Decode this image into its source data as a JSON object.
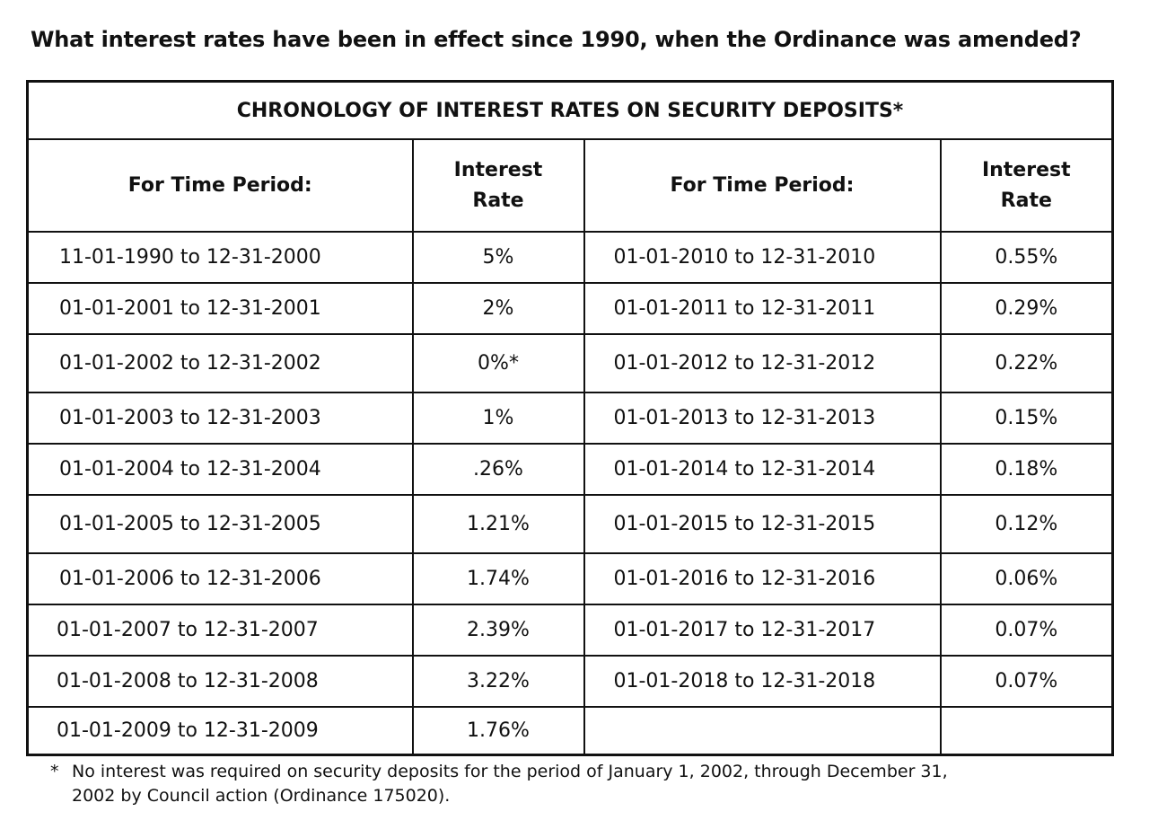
{
  "question": "What interest rates have been in effect since 1990, when the Ordinance was amended?",
  "table": {
    "title": "CHRONOLOGY OF INTEREST RATES ON SECURITY DEPOSITS*",
    "headers": {
      "period": "For Time Period:",
      "rate_line1": "Interest",
      "rate_line2": "Rate"
    },
    "rows": [
      {
        "p1": "11-01-1990 to 12-31-2000",
        "r1": "5%",
        "p2": "01-01-2010 to 12-31-2010",
        "r2": "0.55%"
      },
      {
        "p1": "01-01-2001 to 12-31-2001",
        "r1": "2%",
        "p2": "01-01-2011 to 12-31-2011",
        "r2": "0.29%"
      },
      {
        "p1": "01-01-2002 to 12-31-2002",
        "r1": "0%*",
        "p2": "01-01-2012 to 12-31-2012",
        "r2": "0.22%"
      },
      {
        "p1": "01-01-2003 to 12-31-2003",
        "r1": "1%",
        "p2": "01-01-2013 to 12-31-2013",
        "r2": "0.15%"
      },
      {
        "p1": "01-01-2004 to 12-31-2004",
        "r1": ".26%",
        "p2": "01-01-2014 to 12-31-2014",
        "r2": "0.18%"
      },
      {
        "p1": "01-01-2005 to 12-31-2005",
        "r1": "1.21%",
        "p2": "01-01-2015 to 12-31-2015",
        "r2": "0.12%"
      },
      {
        "p1": "01-01-2006 to 12-31-2006",
        "r1": "1.74%",
        "p2": "01-01-2016 to 12-31-2016",
        "r2": "0.06%"
      },
      {
        "p1": "01-01-2007 to 12-31-2007",
        "r1": "2.39%",
        "p2": "01-01-2017 to 12-31-2017",
        "r2": "0.07%"
      },
      {
        "p1": "01-01-2008 to 12-31-2008",
        "r1": "3.22%",
        "p2": "01-01-2018 to 12-31-2018",
        "r2": "0.07%"
      },
      {
        "p1": "01-01-2009 to 12-31-2009",
        "r1": "1.76%",
        "p2": "",
        "r2": ""
      }
    ]
  },
  "footnote": {
    "marker": "*",
    "line1": "No interest was required on security deposits for the period of January 1, 2002, through December 31,",
    "line2": "2002 by Council action (Ordinance 175020)."
  }
}
